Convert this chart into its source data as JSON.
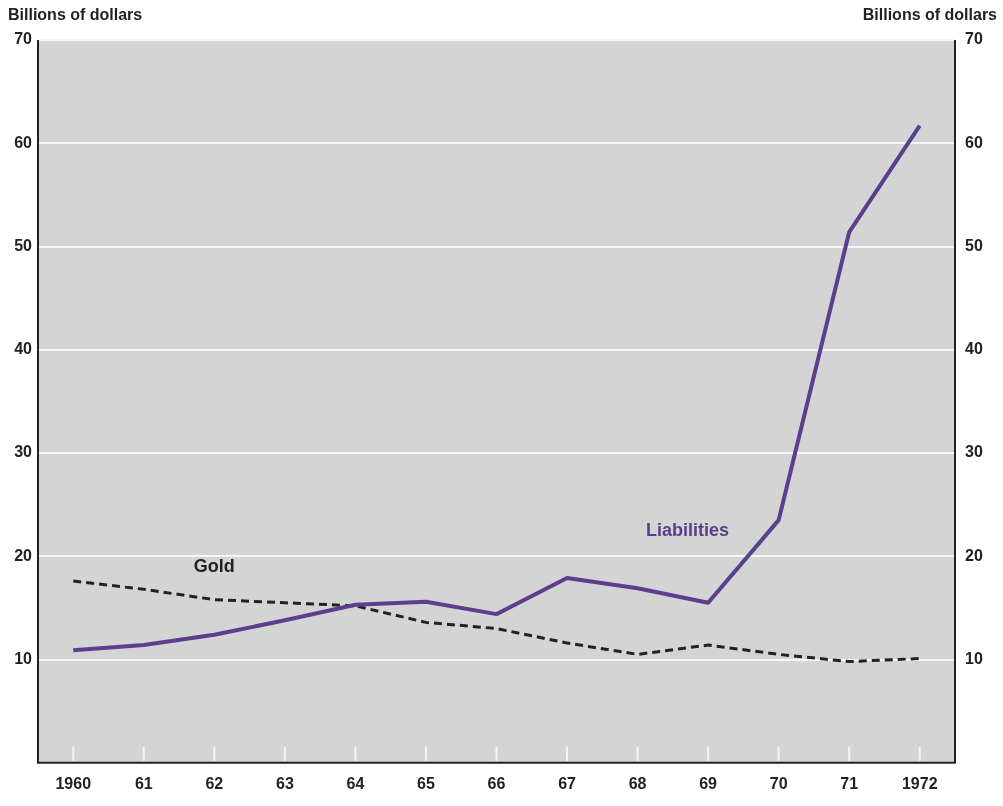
{
  "chart_data": {
    "type": "line",
    "ylabel": "Billions of dollars",
    "y2label": "Billions of dollars",
    "categories": [
      "1960",
      "61",
      "62",
      "63",
      "64",
      "65",
      "66",
      "67",
      "68",
      "69",
      "70",
      "71",
      "1972"
    ],
    "series": [
      {
        "name": "Liabilities",
        "color": "#5b3f8c",
        "line_style": "solid",
        "values": [
          10.9,
          11.4,
          12.4,
          13.8,
          15.3,
          15.6,
          14.4,
          17.9,
          16.9,
          15.5,
          23.5,
          51.4,
          61.7
        ]
      },
      {
        "name": "Gold",
        "color": "#222222",
        "line_style": "dashed",
        "values": [
          17.6,
          16.8,
          15.8,
          15.5,
          15.2,
          13.6,
          13.0,
          11.6,
          10.5,
          11.4,
          10.5,
          9.8,
          10.1
        ]
      }
    ],
    "ylim": [
      0,
      70
    ],
    "yticks": [
      10,
      20,
      30,
      40,
      50,
      60,
      70
    ],
    "y2lim": [
      0,
      70
    ],
    "y2ticks": [
      10,
      20,
      30,
      40,
      50,
      60,
      70
    ],
    "grid": "y",
    "legend": false,
    "marker": "none"
  }
}
